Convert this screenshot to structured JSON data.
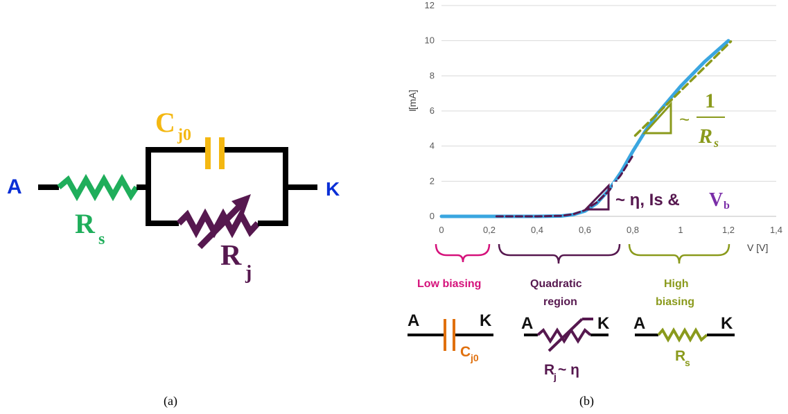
{
  "colors": {
    "wire": "#000000",
    "rs_green": "#1fae5b",
    "cap_orange": "#f4b812",
    "rj_purple": "#56184f",
    "terminal_blue": "#0a2fd6",
    "curve_blue": "#3aa6e0",
    "fit_olive": "#8a9a1c",
    "low_pink": "#d5127b",
    "dark_orange": "#e0700e",
    "rs_olive_small": "#8a9a1c"
  },
  "panel_a": {
    "label": "(a)",
    "terminal_a": "A",
    "terminal_k": "K",
    "cap_label": "C",
    "cap_sub": "j0",
    "rs_label": "R",
    "rs_sub": "s",
    "rj_label": "R",
    "rj_sub": "j"
  },
  "panel_b": {
    "label": "(b)",
    "slope_prefix": "~",
    "slope_num": "1",
    "slope_den": "R",
    "slope_den_sub": "s",
    "quad_annot": "~ η, Is &",
    "quad_v": "V",
    "quad_v_sub": "b",
    "regions": {
      "low": "Low biasing",
      "quad_line1": "Quadratic",
      "quad_line2": "region",
      "high_line1": "High",
      "high_line2": "biasing"
    },
    "small_circuits": {
      "low": {
        "a": "A",
        "k": "K",
        "cap": "C",
        "cap_sub": "j0"
      },
      "quad": {
        "a": "A",
        "k": "K",
        "rj": "R",
        "rj_sub": "j",
        "rj_tail": " ~ η"
      },
      "high": {
        "a": "A",
        "k": "K",
        "rs": "R",
        "rs_sub": "s"
      }
    }
  },
  "chart_data": {
    "type": "line",
    "xlabel": "V [V]",
    "ylabel": "I [mA]",
    "xlim": [
      0,
      1.4
    ],
    "ylim": [
      0,
      12
    ],
    "xticks": [
      "0",
      "0,2",
      "0,4",
      "0,6",
      "0,8",
      "1",
      "1,2",
      "1,4"
    ],
    "yticks": [
      "0",
      "2",
      "4",
      "6",
      "8",
      "10",
      "12"
    ],
    "grid": "horizontal",
    "series": [
      {
        "x": [
          0,
          0.2,
          0.4,
          0.5,
          0.55,
          0.6,
          0.65,
          0.7,
          0.75,
          0.8,
          0.85,
          0.9,
          0.95,
          1.0,
          1.05,
          1.1,
          1.15,
          1.2
        ],
        "y": [
          0,
          0,
          0,
          0.02,
          0.1,
          0.3,
          0.75,
          1.5,
          2.5,
          3.7,
          4.8,
          5.8,
          6.6,
          7.4,
          8.1,
          8.8,
          9.4,
          10.0
        ]
      },
      {
        "x": [
          0.23,
          0.4,
          0.5,
          0.55,
          0.6,
          0.65,
          0.7,
          0.75,
          0.8
        ],
        "y": [
          0,
          0,
          0.03,
          0.12,
          0.35,
          0.8,
          1.45,
          2.35,
          3.45
        ]
      },
      {
        "x": [
          0.81,
          1.21
        ],
        "y": [
          4.6,
          9.95
        ]
      }
    ]
  }
}
